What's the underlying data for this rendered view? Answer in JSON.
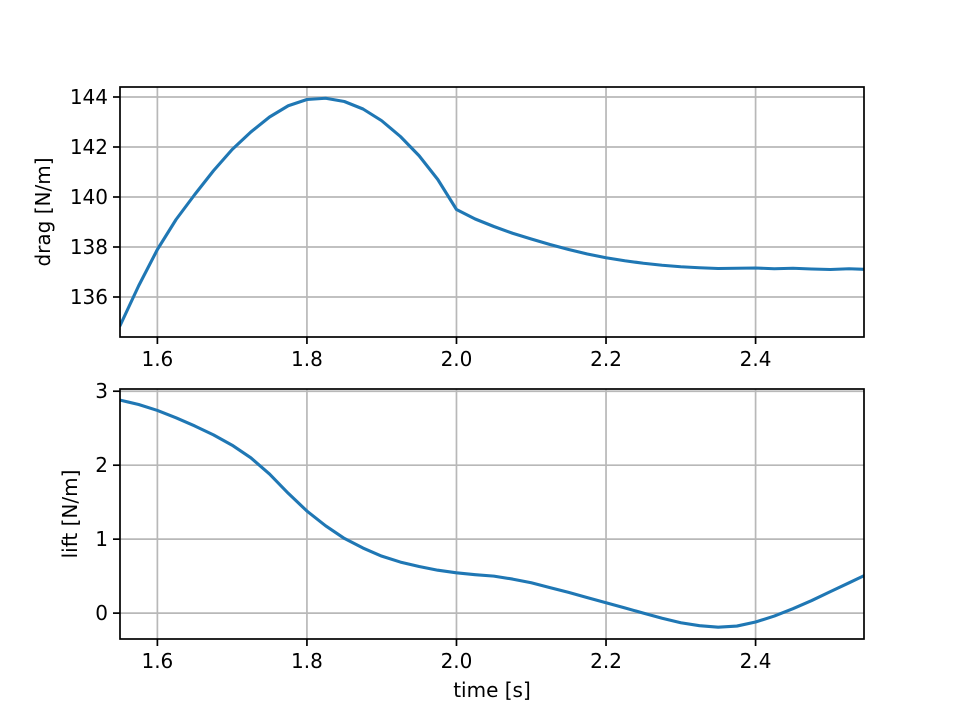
{
  "colors": {
    "line": "#1f77b4",
    "grid": "#b8b8b8",
    "spine": "#000000",
    "text": "#000000",
    "background": "#ffffff"
  },
  "chart_data": [
    {
      "type": "line",
      "title": "",
      "xlabel": "",
      "ylabel": "drag [N/m]",
      "xlim": [
        1.55,
        2.545
      ],
      "ylim": [
        134.4,
        144.4
      ],
      "xticks": [
        1.6,
        1.8,
        2.0,
        2.2,
        2.4
      ],
      "xtick_labels": [
        "1.6",
        "1.8",
        "2.0",
        "2.2",
        "2.4"
      ],
      "yticks": [
        136,
        138,
        140,
        142,
        144
      ],
      "ytick_labels": [
        "136",
        "138",
        "140",
        "142",
        "144"
      ],
      "grid": true,
      "legend": false,
      "series": [
        {
          "name": "drag",
          "color": "#1f77b4",
          "x": [
            1.55,
            1.575,
            1.6,
            1.625,
            1.65,
            1.675,
            1.7,
            1.725,
            1.75,
            1.775,
            1.8,
            1.825,
            1.85,
            1.875,
            1.9,
            1.925,
            1.95,
            1.975,
            2.0,
            2.025,
            2.05,
            2.075,
            2.1,
            2.125,
            2.15,
            2.175,
            2.2,
            2.225,
            2.25,
            2.275,
            2.3,
            2.325,
            2.35,
            2.375,
            2.4,
            2.425,
            2.45,
            2.475,
            2.5,
            2.525,
            2.55
          ],
          "y": [
            134.85,
            136.45,
            137.9,
            139.1,
            140.1,
            141.05,
            141.9,
            142.6,
            143.2,
            143.65,
            143.9,
            143.95,
            143.82,
            143.52,
            143.05,
            142.42,
            141.65,
            140.7,
            139.5,
            139.12,
            138.82,
            138.55,
            138.32,
            138.1,
            137.9,
            137.72,
            137.57,
            137.45,
            137.35,
            137.27,
            137.21,
            137.17,
            137.14,
            137.15,
            137.16,
            137.13,
            137.15,
            137.12,
            137.1,
            137.13,
            137.1
          ]
        }
      ]
    },
    {
      "type": "line",
      "title": "",
      "xlabel": "time [s]",
      "ylabel": "lift [N/m]",
      "xlim": [
        1.55,
        2.545
      ],
      "ylim": [
        -0.35,
        3.03
      ],
      "xticks": [
        1.6,
        1.8,
        2.0,
        2.2,
        2.4
      ],
      "xtick_labels": [
        "1.6",
        "1.8",
        "2.0",
        "2.2",
        "2.4"
      ],
      "yticks": [
        0,
        1,
        2,
        3
      ],
      "ytick_labels": [
        "0",
        "1",
        "2",
        "3"
      ],
      "grid": true,
      "legend": false,
      "series": [
        {
          "name": "lift",
          "color": "#1f77b4",
          "x": [
            1.55,
            1.575,
            1.6,
            1.625,
            1.65,
            1.675,
            1.7,
            1.725,
            1.75,
            1.775,
            1.8,
            1.825,
            1.85,
            1.875,
            1.9,
            1.925,
            1.95,
            1.975,
            2.0,
            2.025,
            2.05,
            2.075,
            2.1,
            2.125,
            2.15,
            2.175,
            2.2,
            2.225,
            2.25,
            2.275,
            2.3,
            2.325,
            2.35,
            2.375,
            2.4,
            2.425,
            2.45,
            2.475,
            2.5,
            2.525,
            2.55
          ],
          "y": [
            2.88,
            2.82,
            2.74,
            2.64,
            2.53,
            2.41,
            2.27,
            2.1,
            1.88,
            1.62,
            1.38,
            1.18,
            1.01,
            0.88,
            0.77,
            0.69,
            0.63,
            0.58,
            0.545,
            0.52,
            0.5,
            0.46,
            0.41,
            0.345,
            0.28,
            0.21,
            0.14,
            0.07,
            0.0,
            -0.07,
            -0.13,
            -0.17,
            -0.19,
            -0.175,
            -0.12,
            -0.04,
            0.06,
            0.17,
            0.29,
            0.41,
            0.53
          ]
        }
      ]
    }
  ]
}
